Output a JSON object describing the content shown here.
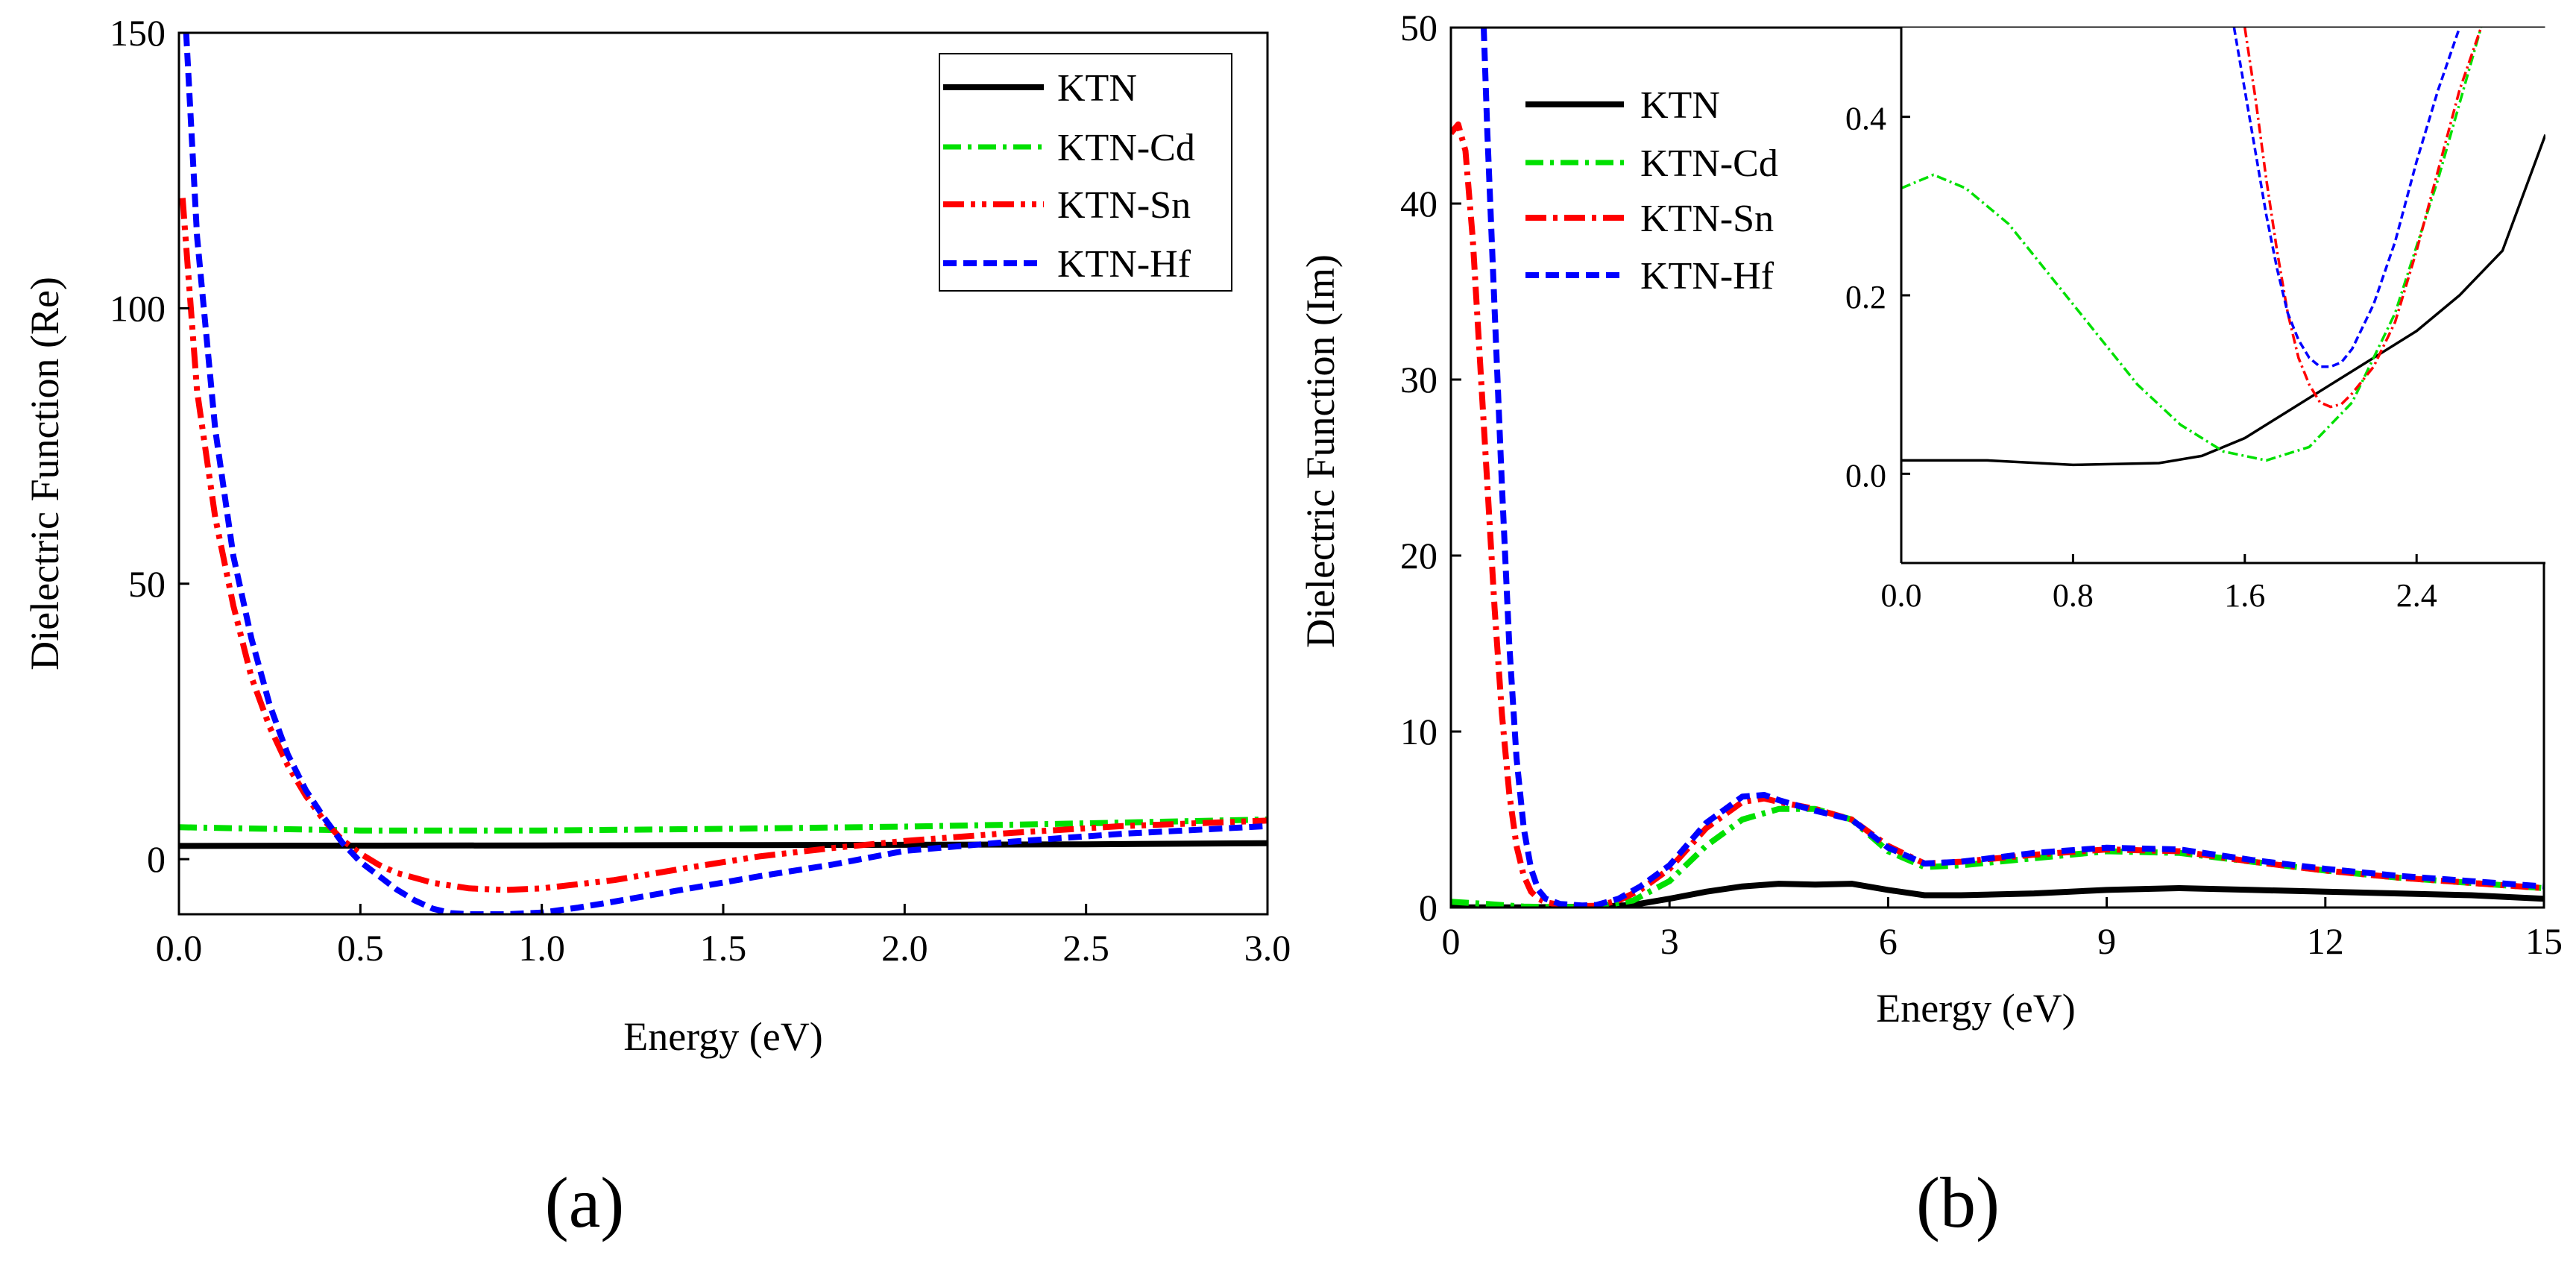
{
  "chart_data": [
    {
      "panel": "(a)",
      "type": "line",
      "title": "",
      "xlabel": "Energy (eV)",
      "ylabel": "Dielectric Function (Re)",
      "xlim": [
        0,
        3.0
      ],
      "ylim": [
        -10,
        150
      ],
      "xticks": [
        "0.0",
        "0.5",
        "1.0",
        "1.5",
        "2.0",
        "2.5",
        "3.0"
      ],
      "yticks": [
        "0",
        "50",
        "100",
        "150"
      ],
      "legend_position": "top-right",
      "series": [
        {
          "name": "KTN",
          "color": "#000000",
          "style": "solid",
          "x": [
            0,
            0.5,
            1.0,
            1.5,
            2.0,
            2.5,
            3.0
          ],
          "y": [
            2.4,
            2.45,
            2.5,
            2.55,
            2.6,
            2.7,
            2.9
          ]
        },
        {
          "name": "KTN-Cd",
          "color": "#00e000",
          "style": "dashdot",
          "x": [
            0,
            0.5,
            1.0,
            1.5,
            2.0,
            2.5,
            3.0
          ],
          "y": [
            5.8,
            5.2,
            5.2,
            5.5,
            5.9,
            6.5,
            7.2
          ]
        },
        {
          "name": "KTN-Sn",
          "color": "#ff0000",
          "style": "dashdotdot",
          "x": [
            0.01,
            0.05,
            0.1,
            0.15,
            0.2,
            0.25,
            0.3,
            0.35,
            0.4,
            0.45,
            0.5,
            0.55,
            0.6,
            0.7,
            0.8,
            0.9,
            1.0,
            1.2,
            1.4,
            1.6,
            1.8,
            2.0,
            2.3,
            2.6,
            3.0
          ],
          "y": [
            120,
            85,
            62,
            46,
            33,
            24,
            17,
            11.5,
            7,
            3.5,
            1.0,
            -1.0,
            -2.5,
            -4.3,
            -5.3,
            -5.6,
            -5.3,
            -3.8,
            -1.6,
            0.5,
            2.0,
            3.3,
            4.8,
            6.0,
            7.0
          ]
        },
        {
          "name": "KTN-Hf",
          "color": "#0000ff",
          "style": "dashed",
          "x": [
            0.02,
            0.05,
            0.1,
            0.15,
            0.2,
            0.25,
            0.3,
            0.35,
            0.4,
            0.45,
            0.5,
            0.55,
            0.6,
            0.65,
            0.7,
            0.75,
            0.8,
            0.9,
            1.0,
            1.1,
            1.2,
            1.4,
            1.6,
            1.8,
            2.0,
            2.3,
            2.6,
            3.0
          ],
          "y": [
            150,
            113,
            78,
            55,
            40,
            28,
            19,
            12.5,
            7.5,
            3.0,
            -0.5,
            -3.0,
            -5.5,
            -7.5,
            -9.0,
            -9.8,
            -10,
            -10,
            -9.7,
            -8.8,
            -7.7,
            -5.4,
            -3.1,
            -1.0,
            1.5,
            3.2,
            4.6,
            6.0
          ]
        }
      ]
    },
    {
      "panel": "(b)",
      "type": "line",
      "title": "",
      "xlabel": "Energy (eV)",
      "ylabel": "Dielectric Function (Im)",
      "xlim": [
        0,
        15
      ],
      "ylim": [
        0,
        50
      ],
      "xticks": [
        "0",
        "3",
        "6",
        "9",
        "12",
        "15"
      ],
      "yticks": [
        "0",
        "10",
        "20",
        "30",
        "40",
        "50"
      ],
      "legend_position": "top-left",
      "series": [
        {
          "name": "KTN",
          "color": "#000000",
          "style": "solid",
          "x": [
            0,
            1,
            2,
            2.5,
            3,
            3.5,
            4,
            4.5,
            5,
            5.5,
            6,
            6.5,
            7,
            8,
            9,
            10,
            11,
            12,
            13,
            14,
            15
          ],
          "y": [
            0.01,
            0.01,
            0.05,
            0.15,
            0.5,
            0.9,
            1.2,
            1.35,
            1.3,
            1.35,
            1.0,
            0.7,
            0.7,
            0.8,
            1.0,
            1.1,
            1.0,
            0.9,
            0.8,
            0.7,
            0.5
          ]
        },
        {
          "name": "KTN-Cd",
          "color": "#00e000",
          "style": "dashdot",
          "x": [
            0,
            0.5,
            1,
            1.5,
            2,
            2.5,
            3,
            3.5,
            4,
            4.5,
            5,
            5.5,
            6,
            6.5,
            7,
            8,
            9,
            10,
            11,
            12,
            13,
            14,
            15
          ],
          "y": [
            0.33,
            0.2,
            0.05,
            0.02,
            0.05,
            0.4,
            1.5,
            3.5,
            5.0,
            5.6,
            5.6,
            5.0,
            3.2,
            2.3,
            2.4,
            2.8,
            3.2,
            3.1,
            2.6,
            2.1,
            1.7,
            1.4,
            1.1
          ]
        },
        {
          "name": "KTN-Sn",
          "color": "#ff0000",
          "style": "dashdot",
          "x": [
            0,
            0.1,
            0.2,
            0.3,
            0.4,
            0.5,
            0.6,
            0.7,
            0.8,
            0.9,
            1.0,
            1.1,
            1.2,
            1.3,
            1.5,
            1.8,
            2.0,
            2.3,
            2.6,
            3,
            3.5,
            4,
            4.3,
            4.5,
            5,
            5.5,
            6,
            6.5,
            7,
            8,
            9,
            10,
            11,
            12,
            13,
            14,
            15
          ],
          "y": [
            44,
            44.5,
            43,
            38,
            31,
            24,
            17,
            11,
            6.5,
            3.5,
            1.8,
            0.9,
            0.5,
            0.3,
            0.15,
            0.08,
            0.1,
            0.4,
            1.0,
            2.2,
            4.5,
            6.0,
            6.2,
            6.0,
            5.6,
            5.0,
            3.5,
            2.5,
            2.6,
            3.0,
            3.3,
            3.2,
            2.6,
            2.1,
            1.7,
            1.4,
            1.1
          ]
        },
        {
          "name": "KTN-Hf",
          "color": "#0000ff",
          "style": "dashed",
          "x": [
            0.45,
            0.5,
            0.6,
            0.7,
            0.8,
            0.9,
            1.0,
            1.1,
            1.2,
            1.3,
            1.5,
            1.8,
            2.0,
            2.3,
            2.6,
            3,
            3.5,
            4,
            4.3,
            4.5,
            5,
            5.5,
            6,
            6.5,
            7,
            8,
            9,
            10,
            11,
            12,
            13,
            14,
            15
          ],
          "y": [
            50,
            44,
            34,
            24,
            15,
            8.5,
            4.5,
            2.2,
            1.0,
            0.5,
            0.2,
            0.12,
            0.15,
            0.5,
            1.2,
            2.4,
            4.8,
            6.3,
            6.4,
            6.1,
            5.5,
            5.0,
            3.4,
            2.5,
            2.6,
            3.1,
            3.4,
            3.3,
            2.7,
            2.2,
            1.8,
            1.5,
            1.2
          ]
        }
      ]
    },
    {
      "panel": "(b) inset",
      "type": "line",
      "xlim": [
        0,
        3.0
      ],
      "ylim": [
        -0.1,
        0.5
      ],
      "xticks": [
        "0.0",
        "0.8",
        "1.6",
        "2.4"
      ],
      "yticks": [
        "0.0",
        "0.2",
        "0.4"
      ],
      "series": [
        {
          "name": "KTN",
          "color": "#000000",
          "style": "solid",
          "x": [
            0,
            0.4,
            0.8,
            1.2,
            1.4,
            1.6,
            1.8,
            2.0,
            2.2,
            2.4,
            2.6,
            2.8,
            3.0
          ],
          "y": [
            0.015,
            0.015,
            0.01,
            0.012,
            0.02,
            0.04,
            0.07,
            0.1,
            0.13,
            0.16,
            0.2,
            0.25,
            0.38
          ]
        },
        {
          "name": "KTN-Cd",
          "color": "#00e000",
          "style": "dashdot",
          "x": [
            0,
            0.15,
            0.3,
            0.5,
            0.7,
            0.9,
            1.1,
            1.3,
            1.5,
            1.7,
            1.9,
            2.1,
            2.3,
            2.5,
            2.7
          ],
          "y": [
            0.32,
            0.335,
            0.32,
            0.28,
            0.22,
            0.16,
            0.1,
            0.055,
            0.025,
            0.015,
            0.03,
            0.08,
            0.18,
            0.33,
            0.5
          ]
        },
        {
          "name": "KTN-Sn",
          "color": "#ff0000",
          "style": "dashdot",
          "x": [
            1.6,
            1.65,
            1.7,
            1.75,
            1.8,
            1.85,
            1.9,
            1.95,
            2.0,
            2.05,
            2.1,
            2.2,
            2.3,
            2.4,
            2.5,
            2.6,
            2.7
          ],
          "y": [
            0.5,
            0.42,
            0.33,
            0.25,
            0.18,
            0.13,
            0.1,
            0.08,
            0.075,
            0.078,
            0.09,
            0.12,
            0.17,
            0.25,
            0.34,
            0.43,
            0.5
          ]
        },
        {
          "name": "KTN-Hf",
          "color": "#0000ff",
          "style": "dashed",
          "x": [
            1.55,
            1.6,
            1.65,
            1.7,
            1.75,
            1.8,
            1.85,
            1.9,
            1.95,
            2.0,
            2.05,
            2.1,
            2.2,
            2.3,
            2.4,
            2.5,
            2.6
          ],
          "y": [
            0.5,
            0.43,
            0.36,
            0.29,
            0.23,
            0.18,
            0.15,
            0.13,
            0.12,
            0.12,
            0.125,
            0.14,
            0.19,
            0.26,
            0.35,
            0.43,
            0.5
          ]
        }
      ]
    }
  ]
}
